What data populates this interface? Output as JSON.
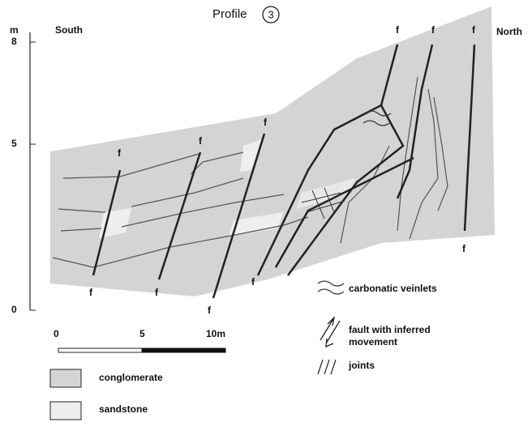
{
  "title": "Profile",
  "title_number": "3",
  "orientation": {
    "left": "South",
    "right": "North"
  },
  "vertical_scale": {
    "unit": "m",
    "ticks": [
      8,
      5,
      0
    ]
  },
  "horizontal_scale": {
    "labels": [
      0,
      5,
      "10m"
    ]
  },
  "fault_labels": [
    "f",
    "f",
    "f",
    "f",
    "f",
    "f",
    "f",
    "f",
    "f",
    "f",
    "f"
  ],
  "legend": {
    "veinlets": "carbonatic veinlets",
    "fault_line1": "fault with inferred",
    "fault_line2": "movement",
    "joints": "joints",
    "conglomerate": "conglomerate",
    "sandstone": "sandstone"
  }
}
